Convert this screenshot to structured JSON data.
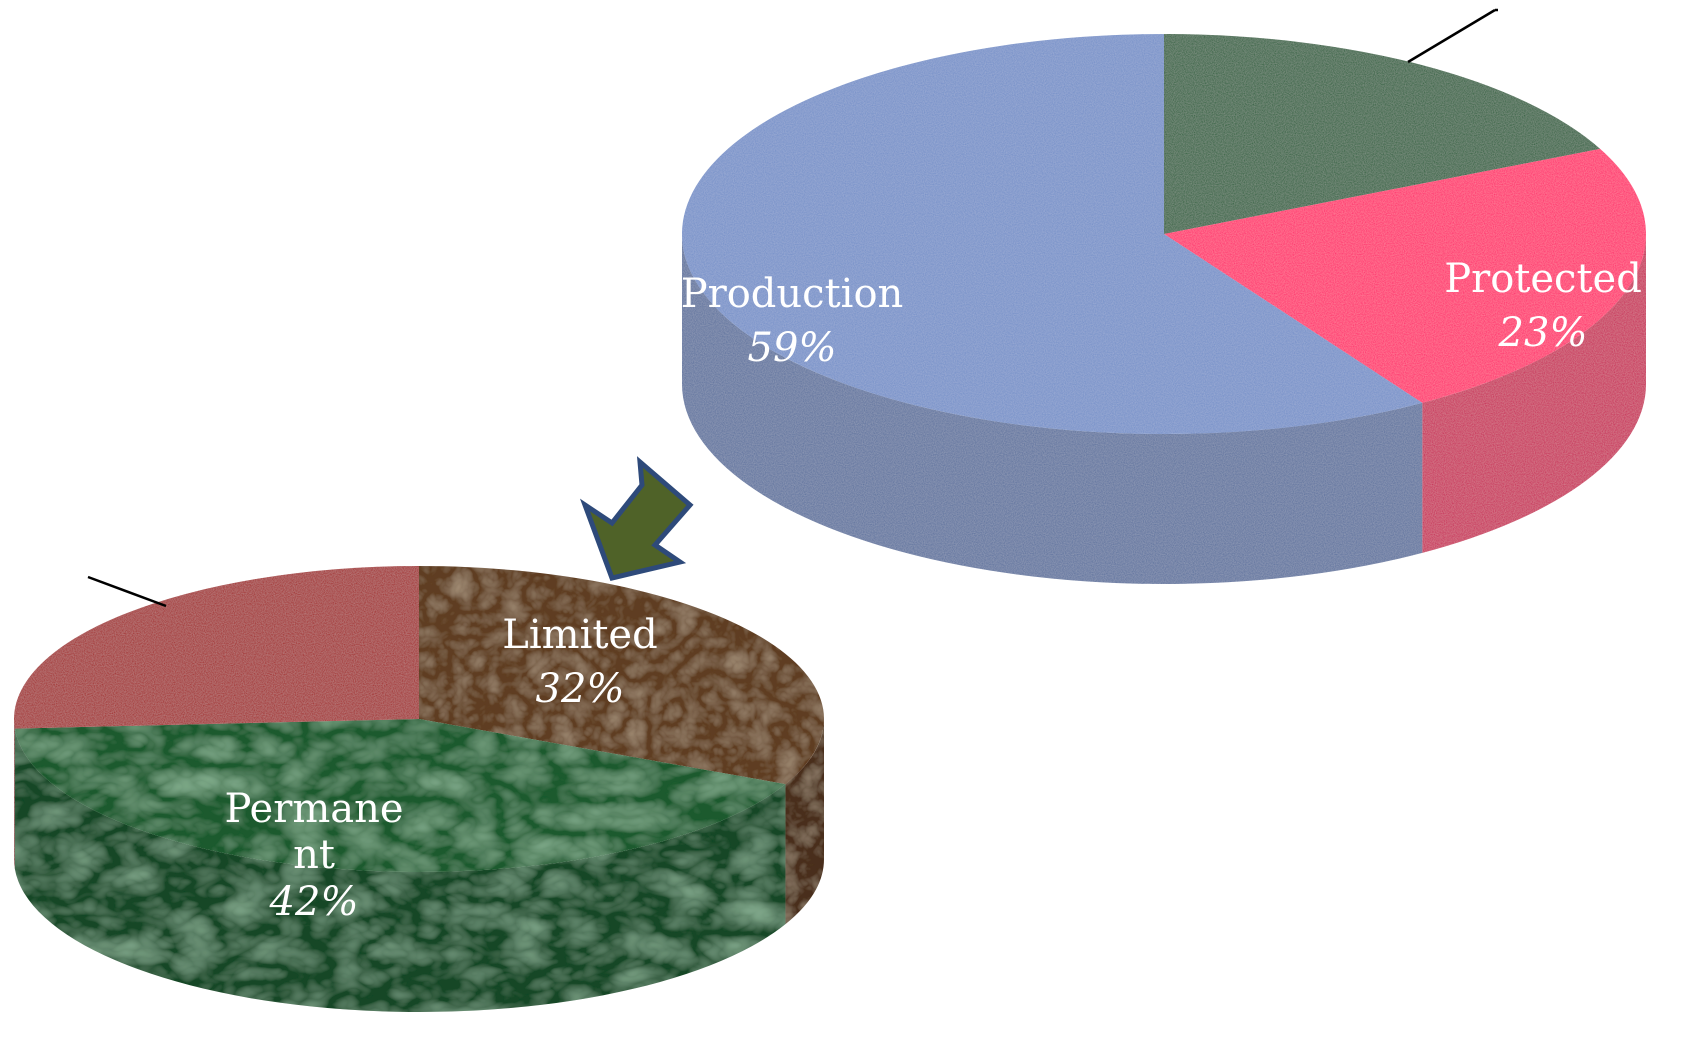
{
  "chart_data": [
    {
      "type": "pie",
      "slices": [
        {
          "label": "",
          "value": 18,
          "color": "#1f5c32"
        },
        {
          "label": "Protected",
          "value": 23,
          "value_label": "23%",
          "color": "#ff0066"
        },
        {
          "label": "Production",
          "value": 59,
          "value_label": "59%",
          "color": "#6f8cc7"
        }
      ]
    },
    {
      "type": "pie",
      "slices": [
        {
          "label": "Limited",
          "value": 32,
          "value_label": "32%",
          "color": "#5e3c22"
        },
        {
          "label": "Permane nt",
          "value": 42,
          "value_label": "42%",
          "color": "#1f5a2f"
        },
        {
          "label": "",
          "value": 26,
          "color": "#a00000"
        }
      ]
    }
  ]
}
